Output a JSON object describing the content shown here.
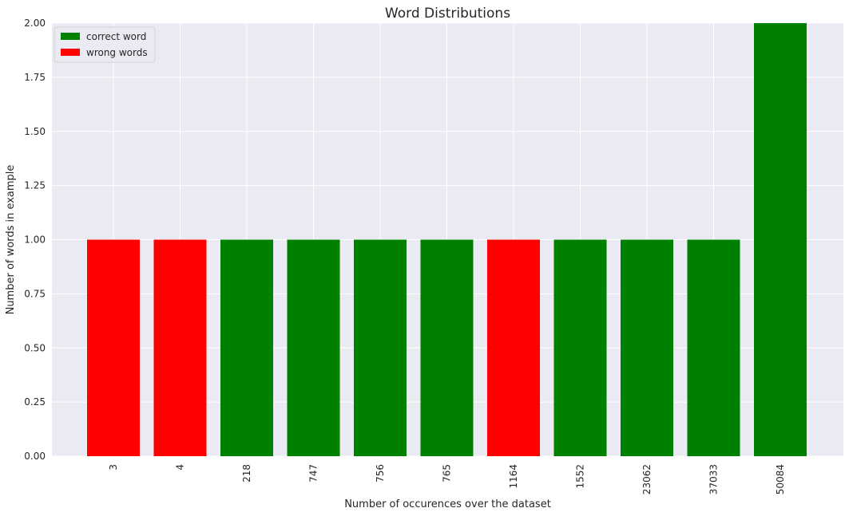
{
  "chart_data": {
    "type": "bar",
    "title": "Word Distributions",
    "xlabel": "Number of occurences over the dataset",
    "ylabel": "Number of words in example",
    "categories": [
      "3",
      "4",
      "218",
      "747",
      "756",
      "765",
      "1164",
      "1552",
      "23062",
      "37033",
      "50084"
    ],
    "values": [
      1,
      1,
      1,
      1,
      1,
      1,
      1,
      1,
      1,
      1,
      2
    ],
    "bar_series": [
      "wrong words",
      "wrong words",
      "correct word",
      "correct word",
      "correct word",
      "correct word",
      "wrong words",
      "correct word",
      "correct word",
      "correct word",
      "correct word"
    ],
    "ylim": [
      0,
      2
    ],
    "yticks": [
      "0.00",
      "0.25",
      "0.50",
      "0.75",
      "1.00",
      "1.25",
      "1.50",
      "1.75",
      "2.00"
    ],
    "grid": true,
    "legend": {
      "placement": "top-left",
      "entries": [
        {
          "name": "correct word",
          "color": "#008000"
        },
        {
          "name": "wrong words",
          "color": "#ff0000"
        }
      ]
    },
    "background_color": "#eaeaf2",
    "grid_color": "#ffffff"
  }
}
